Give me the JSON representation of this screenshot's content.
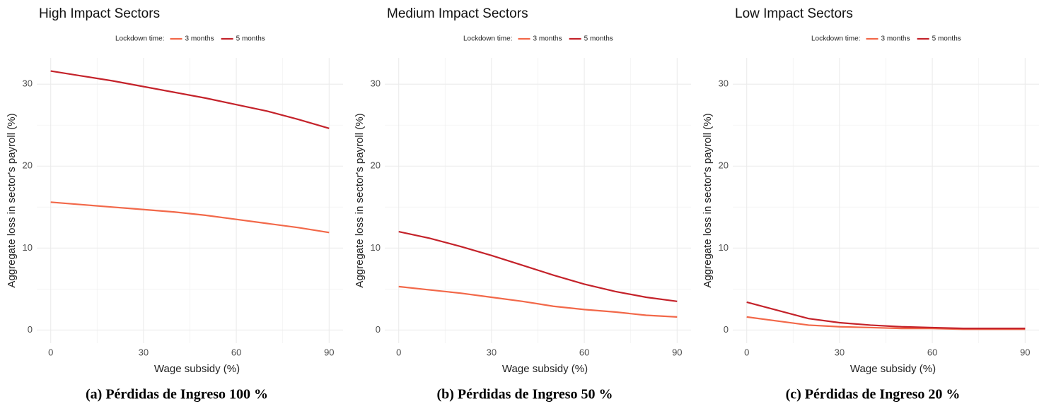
{
  "chart_data": [
    {
      "type": "line",
      "title": "High Impact Sectors",
      "legend_title": "Lockdown time:",
      "caption": "(a) Pérdidas de Ingreso 100 %",
      "xlabel": "Wage subsidy (%)",
      "ylabel": "Aggregate loss in sector's payroll (%)",
      "x": [
        0,
        10,
        20,
        30,
        40,
        50,
        60,
        70,
        80,
        90
      ],
      "series": [
        {
          "name": "3 months",
          "color": "#f26849",
          "values": [
            15.6,
            15.3,
            15.0,
            14.7,
            14.4,
            14.0,
            13.5,
            13.0,
            12.5,
            11.9
          ]
        },
        {
          "name": "5 months",
          "color": "#c4222a",
          "values": [
            31.6,
            31.0,
            30.4,
            29.7,
            29.0,
            28.3,
            27.5,
            26.7,
            25.7,
            24.6
          ]
        }
      ],
      "xlim": [
        -4.5,
        94.5
      ],
      "ylim": [
        -1.6,
        33.2
      ],
      "xticks": [
        0,
        30,
        60,
        90
      ],
      "yticks": [
        0,
        10,
        20,
        30
      ],
      "minor_xticks": [
        15,
        45,
        75
      ],
      "minor_yticks": [
        5,
        15,
        25
      ],
      "grid": true
    },
    {
      "type": "line",
      "title": "Medium Impact Sectors",
      "legend_title": "Lockdown time:",
      "caption": "(b) Pérdidas de Ingreso 50 %",
      "xlabel": "Wage subsidy (%)",
      "ylabel": "Aggregate loss in sector's payroll (%)",
      "x": [
        0,
        10,
        20,
        30,
        40,
        50,
        60,
        70,
        80,
        90
      ],
      "series": [
        {
          "name": "3 months",
          "color": "#f26849",
          "values": [
            5.3,
            4.9,
            4.5,
            4.0,
            3.5,
            2.9,
            2.5,
            2.2,
            1.8,
            1.6
          ]
        },
        {
          "name": "5 months",
          "color": "#c4222a",
          "values": [
            12.0,
            11.2,
            10.2,
            9.1,
            7.9,
            6.7,
            5.6,
            4.7,
            4.0,
            3.5
          ]
        }
      ],
      "xlim": [
        -4.5,
        94.5
      ],
      "ylim": [
        -1.6,
        33.2
      ],
      "xticks": [
        0,
        30,
        60,
        90
      ],
      "yticks": [
        0,
        10,
        20,
        30
      ],
      "minor_xticks": [
        15,
        45,
        75
      ],
      "minor_yticks": [
        5,
        15,
        25
      ],
      "grid": true
    },
    {
      "type": "line",
      "title": "Low Impact Sectors",
      "legend_title": "Lockdown time:",
      "caption": "(c) Pérdidas de Ingreso 20 %",
      "xlabel": "Wage subsidy (%)",
      "ylabel": "Aggregate loss in sector's payroll (%)",
      "x": [
        0,
        10,
        20,
        30,
        40,
        50,
        60,
        70,
        80,
        90
      ],
      "series": [
        {
          "name": "3 months",
          "color": "#f26849",
          "values": [
            1.6,
            1.1,
            0.6,
            0.4,
            0.3,
            0.2,
            0.2,
            0.1,
            0.1,
            0.1
          ]
        },
        {
          "name": "5 months",
          "color": "#c4222a",
          "values": [
            3.4,
            2.4,
            1.4,
            0.9,
            0.6,
            0.4,
            0.3,
            0.2,
            0.2,
            0.2
          ]
        }
      ],
      "xlim": [
        -4.5,
        94.5
      ],
      "ylim": [
        -1.6,
        33.2
      ],
      "xticks": [
        0,
        30,
        60,
        90
      ],
      "yticks": [
        0,
        10,
        20,
        30
      ],
      "minor_xticks": [
        15,
        45,
        75
      ],
      "minor_yticks": [
        5,
        15,
        25
      ],
      "grid": true
    }
  ]
}
